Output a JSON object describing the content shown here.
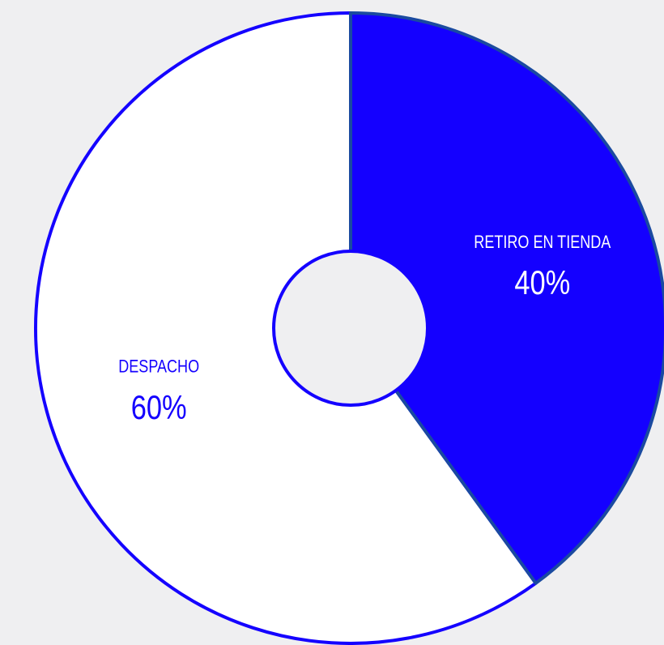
{
  "chart_data": {
    "type": "pie",
    "categories": [
      "RETIRO EN TIENDA",
      "DESPACHO"
    ],
    "values": [
      40,
      60
    ],
    "value_labels": [
      "40%",
      "60%"
    ],
    "colors": [
      "#1400ff",
      "#ffffff"
    ]
  }
}
